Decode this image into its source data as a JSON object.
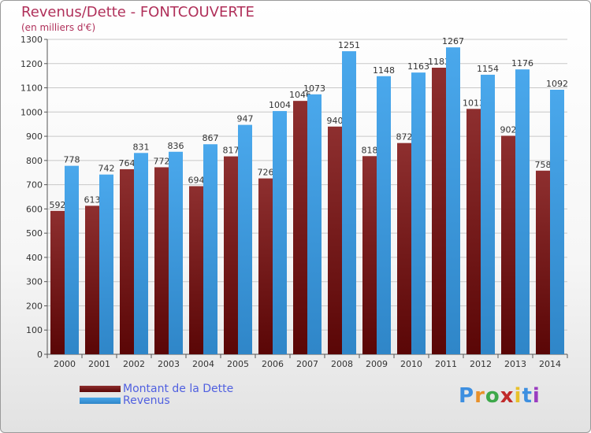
{
  "title": "Revenus/Dette - FONTCOUVERTE",
  "subtitle": "(en milliers d'€)",
  "colors": {
    "dette": "#7a1a1a",
    "revenus": "#3d9fe0",
    "title": "#b0305a",
    "legend_text": "#5060e0"
  },
  "logo": {
    "text": "Proxiti",
    "letters": [
      "P",
      "r",
      "o",
      "x",
      "i",
      "t",
      "i"
    ],
    "letter_colors": [
      "#3d8fe0",
      "#e8902a",
      "#3da84a",
      "#c02a2a",
      "#e8c02a",
      "#3d8fe0",
      "#9a3dc0"
    ]
  },
  "chart_data": {
    "type": "bar",
    "categories": [
      "2000",
      "2001",
      "2002",
      "2003",
      "2004",
      "2005",
      "2006",
      "2007",
      "2008",
      "2009",
      "2010",
      "2011",
      "2012",
      "2013",
      "2014"
    ],
    "series": [
      {
        "name": "Montant de la Dette",
        "color": "#7a1a1a",
        "values": [
          592,
          613,
          764,
          772,
          694,
          817,
          726,
          1046,
          940,
          818,
          872,
          1183,
          1013,
          902,
          758
        ],
        "labels": [
          "592",
          "613",
          "764",
          "772",
          "694",
          "817",
          "726",
          "1046",
          "940",
          "818",
          "872",
          "1183",
          "1013",
          "902",
          "758"
        ]
      },
      {
        "name": "Revenus",
        "color": "#3d9fe0",
        "values": [
          778,
          742,
          831,
          836,
          867,
          947,
          1004,
          1073,
          1251,
          1148,
          1163,
          1267,
          1154,
          1176,
          1092
        ],
        "labels": [
          "778",
          "742",
          "831",
          "836",
          "867",
          "947",
          "1004",
          "1073",
          "1251",
          "1148",
          "1163",
          "1267",
          "1154",
          "1176",
          "1092"
        ]
      }
    ],
    "ylim": [
      0,
      1300
    ],
    "yticks": [
      "0",
      "100",
      "200",
      "300",
      "400",
      "500",
      "600",
      "700",
      "800",
      "900",
      "1000",
      "1100",
      "1200",
      "1300"
    ],
    "grid": true,
    "legend_position": "bottom-left"
  }
}
